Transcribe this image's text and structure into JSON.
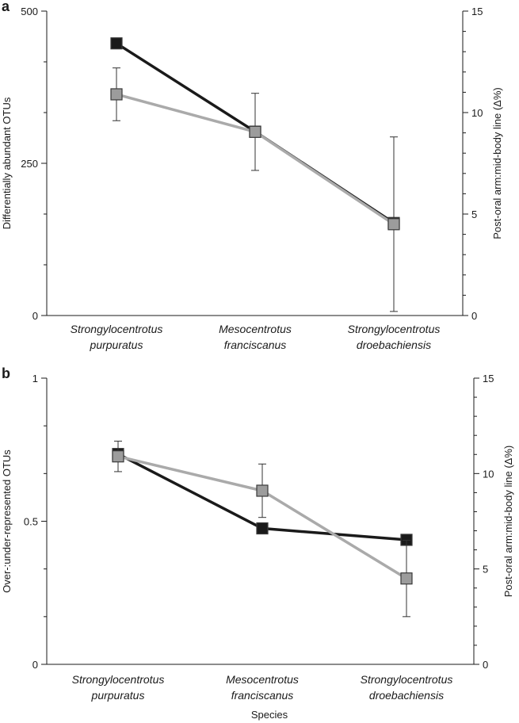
{
  "figure": {
    "xlabel": "Species"
  },
  "chart_data": [
    {
      "type": "line",
      "panel": "a",
      "categories": [
        [
          "Strongylocentrotus",
          "purpuratus"
        ],
        [
          "Mesocentrotus",
          "franciscanus"
        ],
        [
          "Strongylocentrotus",
          "droebachiensis"
        ]
      ],
      "ylabel": "Differentially abundant OTUs",
      "y2label": "Post-oral arm:mid-body line (Δ%)",
      "ylim": [
        0,
        500
      ],
      "yticks": [
        0,
        250,
        500
      ],
      "y2lim": [
        0,
        15
      ],
      "y2ticks": [
        0,
        5,
        10,
        15
      ],
      "series": [
        {
          "axis": "left",
          "color": "#1a1a1a",
          "marker_fill": "#1a1a1a",
          "values": [
            447,
            302,
            152
          ]
        },
        {
          "axis": "right",
          "color": "#aaaaaa",
          "marker_fill": "#9c9c9c",
          "values": [
            10.9,
            9.05,
            4.5
          ],
          "err": [
            1.3,
            1.9,
            4.3
          ]
        }
      ]
    },
    {
      "type": "line",
      "panel": "b",
      "categories": [
        [
          "Strongylocentrotus",
          "purpuratus"
        ],
        [
          "Mesocentrotus",
          "franciscanus"
        ],
        [
          "Strongylocentrotus",
          "droebachiensis"
        ]
      ],
      "ylabel": "Over-:under-represented OTUs",
      "y2label": "Post-oral arm:mid-body line (Δ%)",
      "xlabel": "Species",
      "ylim": [
        0,
        1
      ],
      "yticks": [
        0,
        0.5,
        1
      ],
      "y2lim": [
        0,
        15
      ],
      "y2ticks": [
        0,
        5,
        10,
        15
      ],
      "series": [
        {
          "axis": "left",
          "color": "#1a1a1a",
          "marker_fill": "#1a1a1a",
          "values": [
            0.735,
            0.475,
            0.435
          ]
        },
        {
          "axis": "right",
          "color": "#aaaaaa",
          "marker_fill": "#9c9c9c",
          "values": [
            10.9,
            9.1,
            4.5
          ],
          "err": [
            0.8,
            1.4,
            2.0
          ]
        }
      ]
    }
  ]
}
